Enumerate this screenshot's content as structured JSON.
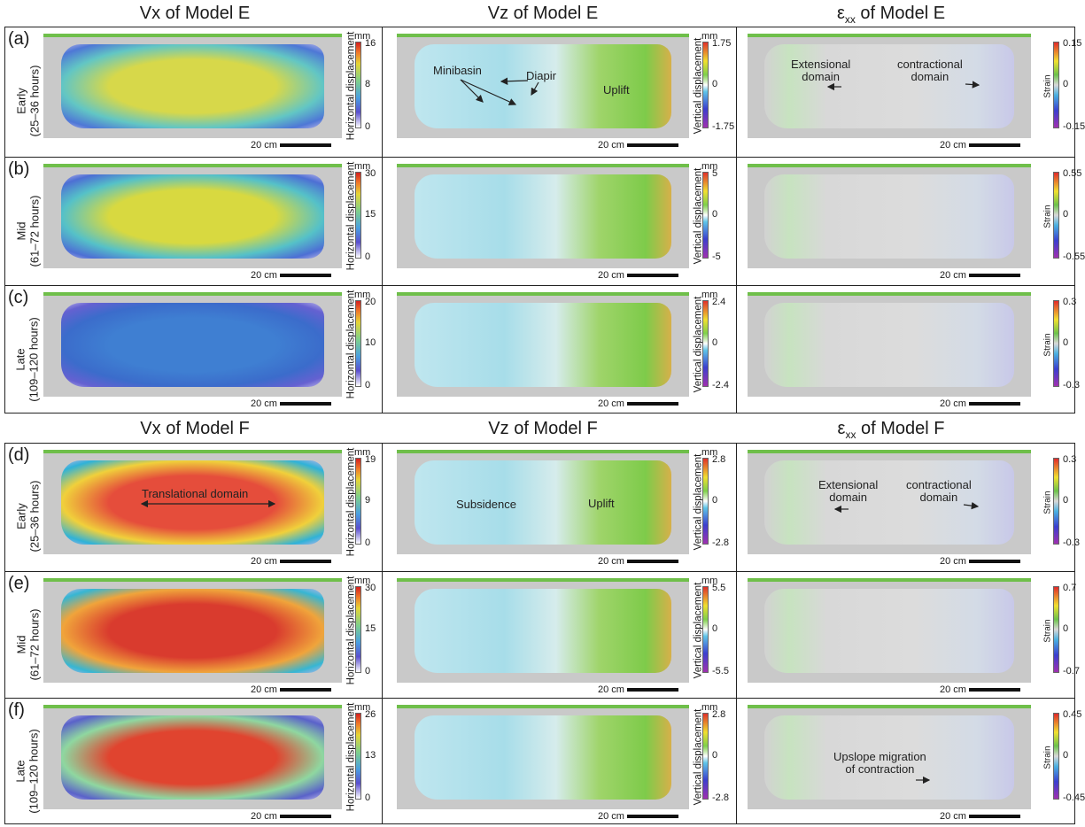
{
  "columns_top": {
    "vx": "Vx of Model E",
    "vz": "Vz of Model E",
    "exx_symbol": "ε",
    "exx_sub": "xx",
    "exx_rest": " of Model E"
  },
  "columns_bottom": {
    "vx": "Vx of Model F",
    "vz": "Vz of Model F",
    "exx_symbol": "ε",
    "exx_sub": "xx",
    "exx_rest": " of Model F"
  },
  "common": {
    "unit": "mm",
    "scale_label": "20 cm",
    "hlabel": "Horizontal displacement",
    "vlabel": "Vertical displacement",
    "slabel": "Strain"
  },
  "rows": [
    {
      "letter": "(a)",
      "stage": "Early",
      "hours": "(25–36 hours)",
      "vx": {
        "max": "16",
        "mid": "8",
        "min": "0"
      },
      "vz": {
        "max": "1.75",
        "mid": "0",
        "min": "-1.75"
      },
      "exx": {
        "max": "0.15",
        "mid": "0",
        "min": "-0.15"
      }
    },
    {
      "letter": "(b)",
      "stage": "Mid",
      "hours": "(61–72 hours)",
      "vx": {
        "max": "30",
        "mid": "15",
        "min": "0"
      },
      "vz": {
        "max": "5",
        "mid": "0",
        "min": "-5"
      },
      "exx": {
        "max": "0.55",
        "mid": "0",
        "min": "-0.55"
      }
    },
    {
      "letter": "(c)",
      "stage": "Late",
      "hours": "(109–120 hours)",
      "vx": {
        "max": "20",
        "mid": "10",
        "min": "0"
      },
      "vz": {
        "max": "2.4",
        "mid": "0",
        "min": "-2.4"
      },
      "exx": {
        "max": "0.3",
        "mid": "0",
        "min": "-0.3"
      }
    },
    {
      "letter": "(d)",
      "stage": "Early",
      "hours": "(25–36 hours)",
      "vx": {
        "max": "19",
        "mid": "9",
        "min": "0"
      },
      "vz": {
        "max": "2.8",
        "mid": "0",
        "min": "-2.8"
      },
      "exx": {
        "max": "0.3",
        "mid": "0",
        "min": "-0.3"
      }
    },
    {
      "letter": "(e)",
      "stage": "Mid",
      "hours": "(61–72 hours)",
      "vx": {
        "max": "30",
        "mid": "15",
        "min": "0"
      },
      "vz": {
        "max": "5.5",
        "mid": "0",
        "min": "-5.5"
      },
      "exx": {
        "max": "0.7",
        "mid": "0",
        "min": "-0.7"
      }
    },
    {
      "letter": "(f)",
      "stage": "Late",
      "hours": "(109–120 hours)",
      "vx": {
        "max": "26",
        "mid": "13",
        "min": "0"
      },
      "vz": {
        "max": "2.8",
        "mid": "0",
        "min": "-2.8"
      },
      "exx": {
        "max": "0.45",
        "mid": "0",
        "min": "-0.45"
      }
    }
  ],
  "annotations": {
    "minibasin": "Minibasin",
    "diapir": "Diapir",
    "uplift": "Uplift",
    "extensional_1": "Extensional",
    "extensional_2": "domain",
    "contractional_1": "contractional",
    "contractional_2": "domain",
    "translational": "Translational domain",
    "subsidence": "Subsidence",
    "upslope_1": "Upslope migration",
    "upslope_2": "of contraction"
  },
  "colors": {
    "frame": "#222222",
    "model_bg": "#c9c9c9"
  }
}
